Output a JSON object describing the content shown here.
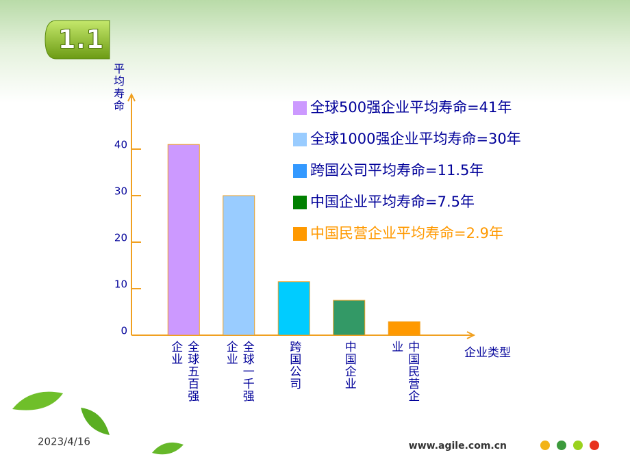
{
  "header": {
    "badge": "1.1"
  },
  "footer": {
    "date": "2023/4/16",
    "url": "www.agile.com.cn"
  },
  "chart_data": {
    "type": "bar",
    "y_label": "平均寿命",
    "x_label": "企业类型",
    "categories": [
      "全球五百强企业",
      "全球一千强企业",
      "跨国公司",
      "中国企业",
      "中国民营企业"
    ],
    "values": [
      41,
      30,
      11.5,
      7.5,
      2.9
    ],
    "colors": [
      "#cc99ff",
      "#99ccff",
      "#00ccff",
      "#339966",
      "#ff9900"
    ],
    "ylim": [
      0,
      50
    ],
    "yticks": [
      0,
      10,
      20,
      30,
      40
    ],
    "legend": [
      {
        "label": "全球500强企业平均寿命=41年",
        "color": "#cc99ff",
        "text_color": "#000099"
      },
      {
        "label": "全球1000强企业平均寿命=30年",
        "color": "#99ccff",
        "text_color": "#000099"
      },
      {
        "label": "跨国公司平均寿命=11.5年",
        "color": "#3399ff",
        "text_color": "#000099"
      },
      {
        "label": "中国企业平均寿命=7.5年",
        "color": "#008000",
        "text_color": "#000099"
      },
      {
        "label": "中国民营企业平均寿命=2.9年",
        "color": "#ff9900",
        "text_color": "#ff9900"
      }
    ]
  }
}
